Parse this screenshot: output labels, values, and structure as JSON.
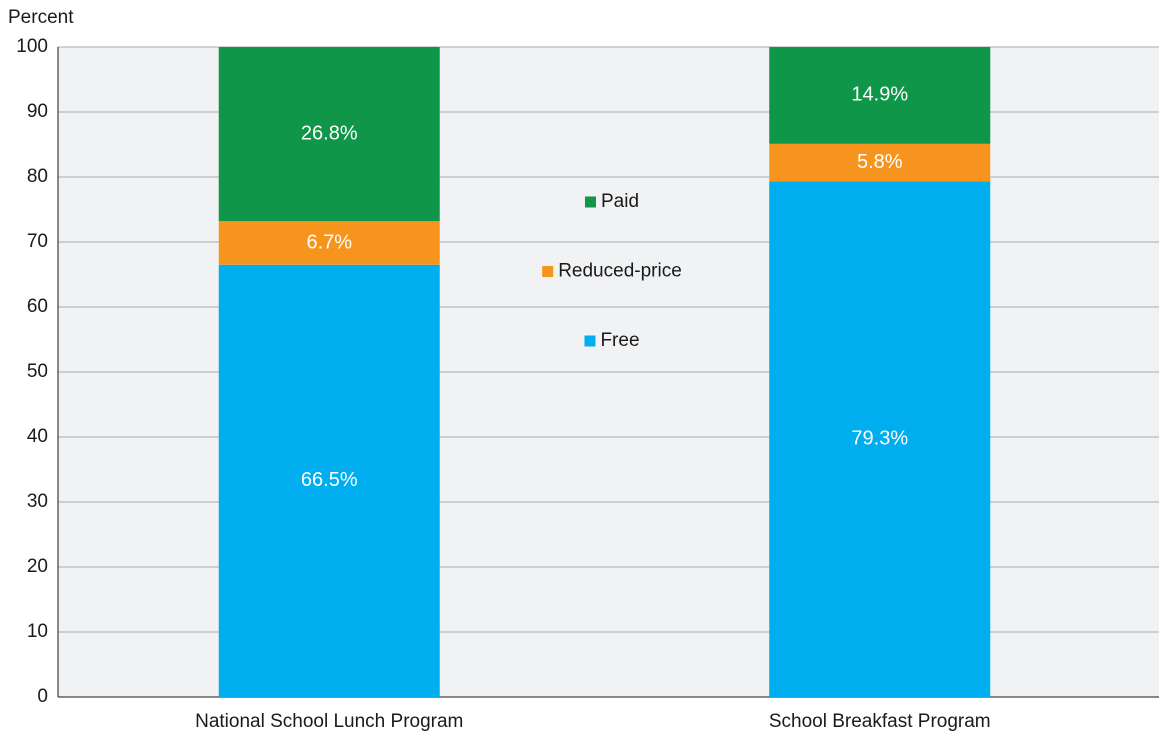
{
  "chart_data": {
    "type": "stacked_bar",
    "y_axis_label": "Percent",
    "categories": [
      "National School Lunch Program",
      "School Breakfast Program"
    ],
    "series": [
      {
        "name": "Free",
        "color": "#00aeef",
        "values": [
          66.5,
          79.3
        ],
        "value_labels": [
          "66.5%",
          "79.3%"
        ]
      },
      {
        "name": "Reduced-price",
        "color": "#f7941d",
        "values": [
          6.7,
          5.8
        ],
        "value_labels": [
          "6.7%",
          "5.8%"
        ]
      },
      {
        "name": "Paid",
        "color": "#0f9648",
        "values": [
          26.8,
          14.9
        ],
        "value_labels": [
          "26.8%",
          "14.9%"
        ]
      }
    ],
    "ylim": [
      0,
      100
    ],
    "yticks": [
      0,
      10,
      20,
      30,
      40,
      50,
      60,
      70,
      80,
      90,
      100
    ],
    "grid": true
  }
}
